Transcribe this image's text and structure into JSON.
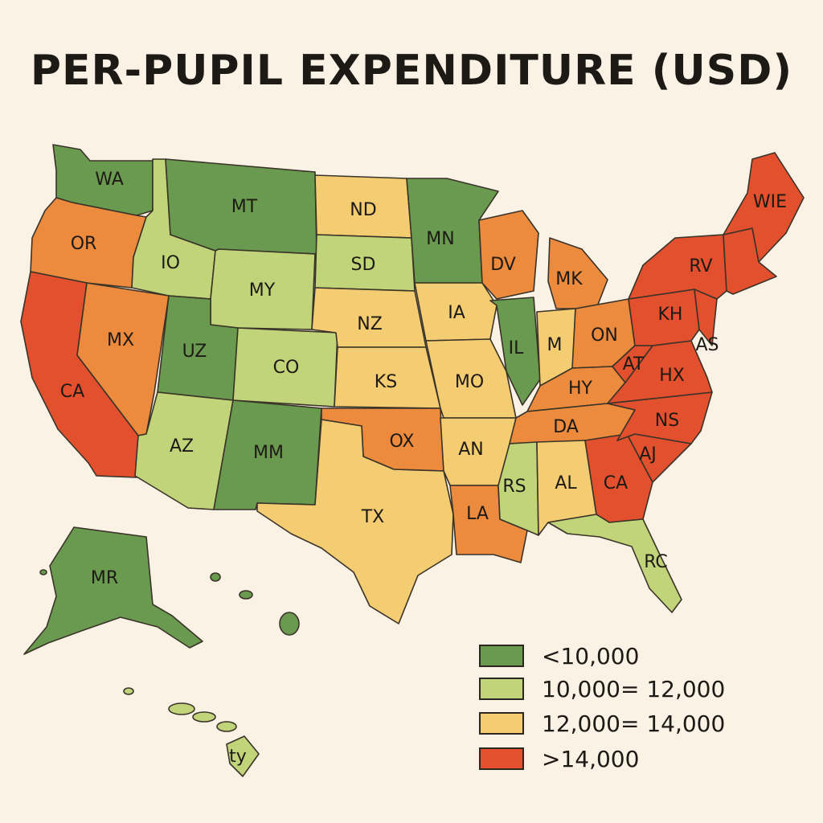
{
  "title": "PER-PUPIL EXPENDITURE (USD)",
  "colors": {
    "c1": "#6a9a4f",
    "c2": "#c2d47a",
    "c3": "#f4cc72",
    "c4a": "#ec8a3e",
    "c4b": "#e2502e"
  },
  "legend": [
    {
      "label": "<10,000",
      "color": "#6a9a4f"
    },
    {
      "label": "10,000= 12,000",
      "color": "#c2d47a"
    },
    {
      "label": "12,000= 14,000",
      "color": "#f4cc72"
    },
    {
      "label": ">14,000",
      "color": "#e2502e"
    }
  ],
  "states": [
    {
      "id": "wa",
      "label": "WA",
      "cls": "c1"
    },
    {
      "id": "or",
      "label": "OR",
      "cls": "c4a"
    },
    {
      "id": "ca",
      "label": "CA",
      "cls": "c4b"
    },
    {
      "id": "nv",
      "label": "MX",
      "cls": "c4a"
    },
    {
      "id": "id",
      "label": "IO",
      "cls": "c2"
    },
    {
      "id": "mt",
      "label": "MT",
      "cls": "c1"
    },
    {
      "id": "wy",
      "label": "MY",
      "cls": "c2"
    },
    {
      "id": "ut",
      "label": "UZ",
      "cls": "c1"
    },
    {
      "id": "co",
      "label": "CO",
      "cls": "c2"
    },
    {
      "id": "az",
      "label": "AZ",
      "cls": "c2"
    },
    {
      "id": "nm",
      "label": "MM",
      "cls": "c1"
    },
    {
      "id": "nd",
      "label": "ND",
      "cls": "c3"
    },
    {
      "id": "sd",
      "label": "SD",
      "cls": "c2"
    },
    {
      "id": "ne",
      "label": "NZ",
      "cls": "c3"
    },
    {
      "id": "ks",
      "label": "KS",
      "cls": "c3"
    },
    {
      "id": "ok",
      "label": "OX",
      "cls": "c4a"
    },
    {
      "id": "tx",
      "label": "TX",
      "cls": "c3"
    },
    {
      "id": "mn",
      "label": "MN",
      "cls": "c1"
    },
    {
      "id": "ia",
      "label": "IA",
      "cls": "c3"
    },
    {
      "id": "mo",
      "label": "MO",
      "cls": "c3"
    },
    {
      "id": "ar",
      "label": "AN",
      "cls": "c3"
    },
    {
      "id": "la",
      "label": "LA",
      "cls": "c4a"
    },
    {
      "id": "wi",
      "label": "DV",
      "cls": "c4a"
    },
    {
      "id": "il",
      "label": "IL",
      "cls": "c1"
    },
    {
      "id": "mi",
      "label": "MK",
      "cls": "c4a"
    },
    {
      "id": "in",
      "label": "M",
      "cls": "c3"
    },
    {
      "id": "oh",
      "label": "ON",
      "cls": "c4a"
    },
    {
      "id": "ky",
      "label": "HY",
      "cls": "c4a"
    },
    {
      "id": "tn",
      "label": "DA",
      "cls": "c4a"
    },
    {
      "id": "ms",
      "label": "RS",
      "cls": "c2"
    },
    {
      "id": "al",
      "label": "AL",
      "cls": "c3"
    },
    {
      "id": "ga",
      "label": "CA",
      "cls": "c4b"
    },
    {
      "id": "fl",
      "label": "RC",
      "cls": "c2"
    },
    {
      "id": "sc",
      "label": "AJ",
      "cls": "c4b"
    },
    {
      "id": "nc",
      "label": "NS",
      "cls": "c4b"
    },
    {
      "id": "va",
      "label": "HX",
      "cls": "c4b"
    },
    {
      "id": "wv",
      "label": "AT",
      "cls": "c4b"
    },
    {
      "id": "pa",
      "label": "KH",
      "cls": "c4b"
    },
    {
      "id": "ny",
      "label": "RV",
      "cls": "c4b"
    },
    {
      "id": "nj",
      "label": "AS",
      "cls": "c4b"
    },
    {
      "id": "me",
      "label": "WIE",
      "cls": "c4b"
    },
    {
      "id": "ak",
      "label": "MR",
      "cls": "c1"
    },
    {
      "id": "hi",
      "label": "ty",
      "cls": "c2"
    }
  ]
}
